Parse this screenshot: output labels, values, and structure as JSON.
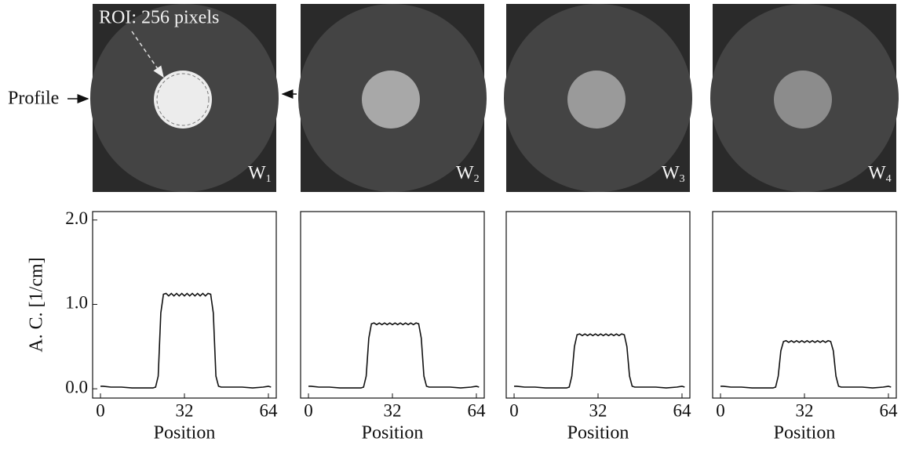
{
  "annotations": {
    "roi": "ROI: 256 pixels",
    "profile": "Profile"
  },
  "images": [
    {
      "label": "W",
      "subscript": "1"
    },
    {
      "label": "W",
      "subscript": "2"
    },
    {
      "label": "W",
      "subscript": "3"
    },
    {
      "label": "W",
      "subscript": "4"
    }
  ],
  "chart_data": [
    {
      "type": "line",
      "y_label": "A. C.  [1/cm]",
      "x_label": "Position",
      "color": "#111111",
      "xlim": [
        -3,
        67
      ],
      "xticks": [
        0,
        32,
        64
      ],
      "ylim": [
        -0.11,
        2.1
      ],
      "yticks": [
        {
          "value": 0,
          "label": "0.0"
        },
        {
          "value": 1,
          "label": "1.0"
        },
        {
          "value": 2,
          "label": "2.0"
        }
      ],
      "x": [
        0,
        1,
        4,
        8,
        12,
        16,
        20,
        21,
        22,
        23,
        24,
        25,
        26,
        27,
        28,
        29,
        30,
        31,
        32,
        33,
        34,
        35,
        36,
        37,
        38,
        39,
        40,
        41,
        42,
        43,
        44,
        45,
        46,
        50,
        54,
        58,
        62,
        64,
        65
      ],
      "values": [
        0.03,
        0.03,
        0.02,
        0.02,
        0.01,
        0.01,
        0.01,
        0.02,
        0.15,
        0.9,
        1.12,
        1.13,
        1.1,
        1.13,
        1.1,
        1.13,
        1.1,
        1.13,
        1.1,
        1.13,
        1.1,
        1.13,
        1.1,
        1.13,
        1.1,
        1.13,
        1.1,
        1.13,
        1.12,
        0.9,
        0.15,
        0.03,
        0.02,
        0.02,
        0.02,
        0.01,
        0.02,
        0.03,
        0.02
      ]
    },
    {
      "type": "line",
      "x_label": "Position",
      "color": "#111111",
      "xlim": [
        -3,
        67
      ],
      "xticks": [
        0,
        32,
        64
      ],
      "ylim": [
        -0.11,
        2.1
      ],
      "x": [
        0,
        1,
        4,
        8,
        12,
        16,
        20,
        21,
        22,
        23,
        24,
        25,
        26,
        27,
        28,
        29,
        30,
        31,
        32,
        33,
        34,
        35,
        36,
        37,
        38,
        39,
        40,
        41,
        42,
        43,
        44,
        45,
        46,
        50,
        54,
        58,
        62,
        64,
        65
      ],
      "values": [
        0.03,
        0.03,
        0.02,
        0.02,
        0.01,
        0.01,
        0.01,
        0.02,
        0.15,
        0.6,
        0.77,
        0.78,
        0.76,
        0.78,
        0.76,
        0.78,
        0.76,
        0.78,
        0.76,
        0.78,
        0.76,
        0.78,
        0.76,
        0.78,
        0.76,
        0.78,
        0.76,
        0.78,
        0.77,
        0.6,
        0.15,
        0.03,
        0.02,
        0.02,
        0.02,
        0.01,
        0.02,
        0.03,
        0.02
      ]
    },
    {
      "type": "line",
      "x_label": "Position",
      "color": "#111111",
      "xlim": [
        -3,
        67
      ],
      "xticks": [
        0,
        32,
        64
      ],
      "ylim": [
        -0.11,
        2.1
      ],
      "x": [
        0,
        1,
        4,
        8,
        12,
        16,
        20,
        21,
        22,
        23,
        24,
        25,
        26,
        27,
        28,
        29,
        30,
        31,
        32,
        33,
        34,
        35,
        36,
        37,
        38,
        39,
        40,
        41,
        42,
        43,
        44,
        45,
        46,
        50,
        54,
        58,
        62,
        64,
        65
      ],
      "values": [
        0.03,
        0.03,
        0.02,
        0.02,
        0.01,
        0.01,
        0.01,
        0.02,
        0.15,
        0.5,
        0.64,
        0.65,
        0.63,
        0.65,
        0.63,
        0.65,
        0.63,
        0.65,
        0.63,
        0.65,
        0.63,
        0.65,
        0.63,
        0.65,
        0.63,
        0.65,
        0.63,
        0.65,
        0.64,
        0.5,
        0.15,
        0.03,
        0.02,
        0.02,
        0.02,
        0.01,
        0.02,
        0.03,
        0.02
      ]
    },
    {
      "type": "line",
      "x_label": "Position",
      "color": "#111111",
      "xlim": [
        -3,
        67
      ],
      "xticks": [
        0,
        32,
        64
      ],
      "ylim": [
        -0.11,
        2.1
      ],
      "x": [
        0,
        1,
        4,
        8,
        12,
        16,
        20,
        21,
        22,
        23,
        24,
        25,
        26,
        27,
        28,
        29,
        30,
        31,
        32,
        33,
        34,
        35,
        36,
        37,
        38,
        39,
        40,
        41,
        42,
        43,
        44,
        45,
        46,
        50,
        54,
        58,
        62,
        64,
        65
      ],
      "values": [
        0.03,
        0.03,
        0.02,
        0.02,
        0.01,
        0.01,
        0.01,
        0.02,
        0.15,
        0.45,
        0.56,
        0.57,
        0.55,
        0.57,
        0.55,
        0.57,
        0.55,
        0.57,
        0.55,
        0.57,
        0.55,
        0.57,
        0.55,
        0.57,
        0.55,
        0.57,
        0.55,
        0.57,
        0.56,
        0.45,
        0.15,
        0.03,
        0.02,
        0.02,
        0.02,
        0.01,
        0.02,
        0.03,
        0.02
      ]
    }
  ]
}
